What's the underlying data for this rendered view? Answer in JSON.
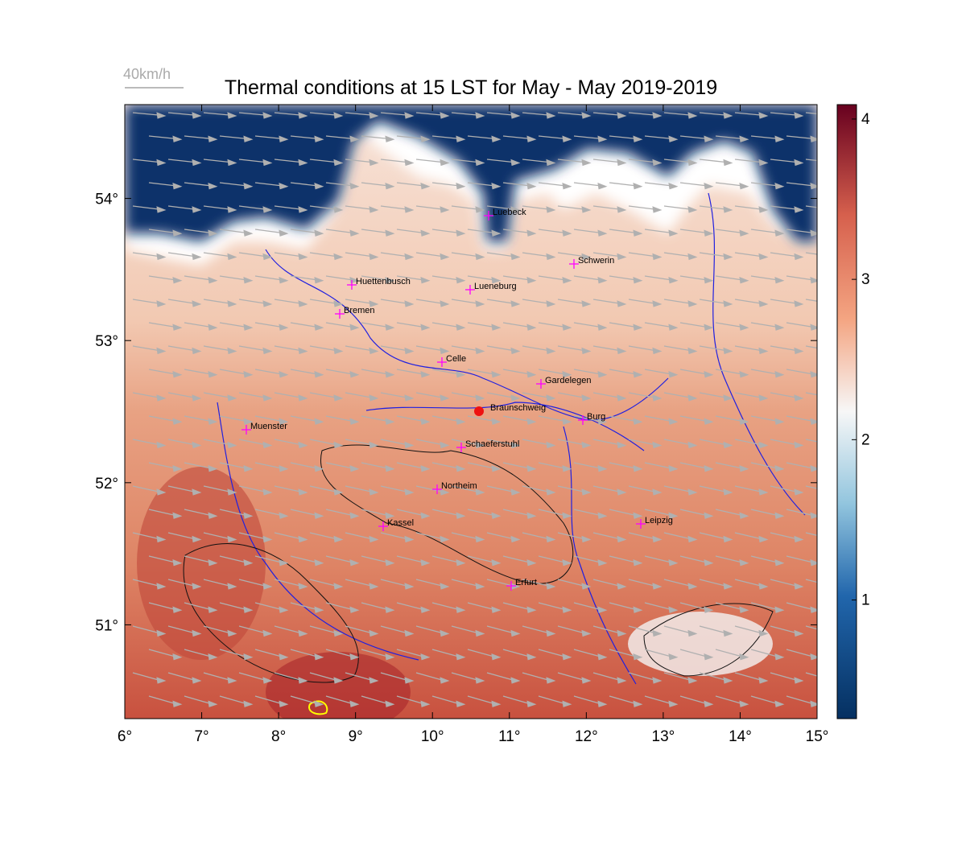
{
  "map": {
    "title": "Thermal conditions at 15 LST for May - May  2019-2019",
    "wind_scale_label": "40km/h",
    "xlim": [
      6,
      15
    ],
    "ylim": [
      50.34,
      54.66
    ],
    "xticks": [
      {
        "value": 6,
        "label": "6°"
      },
      {
        "value": 7,
        "label": "7°"
      },
      {
        "value": 8,
        "label": "8°"
      },
      {
        "value": 9,
        "label": "9°"
      },
      {
        "value": 10,
        "label": "10°"
      },
      {
        "value": 11,
        "label": "11°"
      },
      {
        "value": 12,
        "label": "12°"
      },
      {
        "value": 13,
        "label": "13°"
      },
      {
        "value": 14,
        "label": "14°"
      },
      {
        "value": 15,
        "label": "15°"
      }
    ],
    "yticks": [
      {
        "value": 51,
        "label": "51°"
      },
      {
        "value": 52,
        "label": "52°"
      },
      {
        "value": 53,
        "label": "53°"
      },
      {
        "value": 54,
        "label": "54°"
      }
    ],
    "colorbar": {
      "clim": [
        0.26,
        4.09
      ],
      "ticks": [
        1,
        2,
        3,
        4
      ]
    },
    "cities": [
      "Luebeck",
      "Schwerin",
      "Huettenbusch",
      "Lueneburg",
      "Bremen",
      "Celle",
      "Gardelegen",
      "Braunschweig",
      "Burg",
      "Muenster",
      "Schaeferstuhl",
      "Northeim",
      "Kassel",
      "Leipzig",
      "Erfurt"
    ]
  }
}
